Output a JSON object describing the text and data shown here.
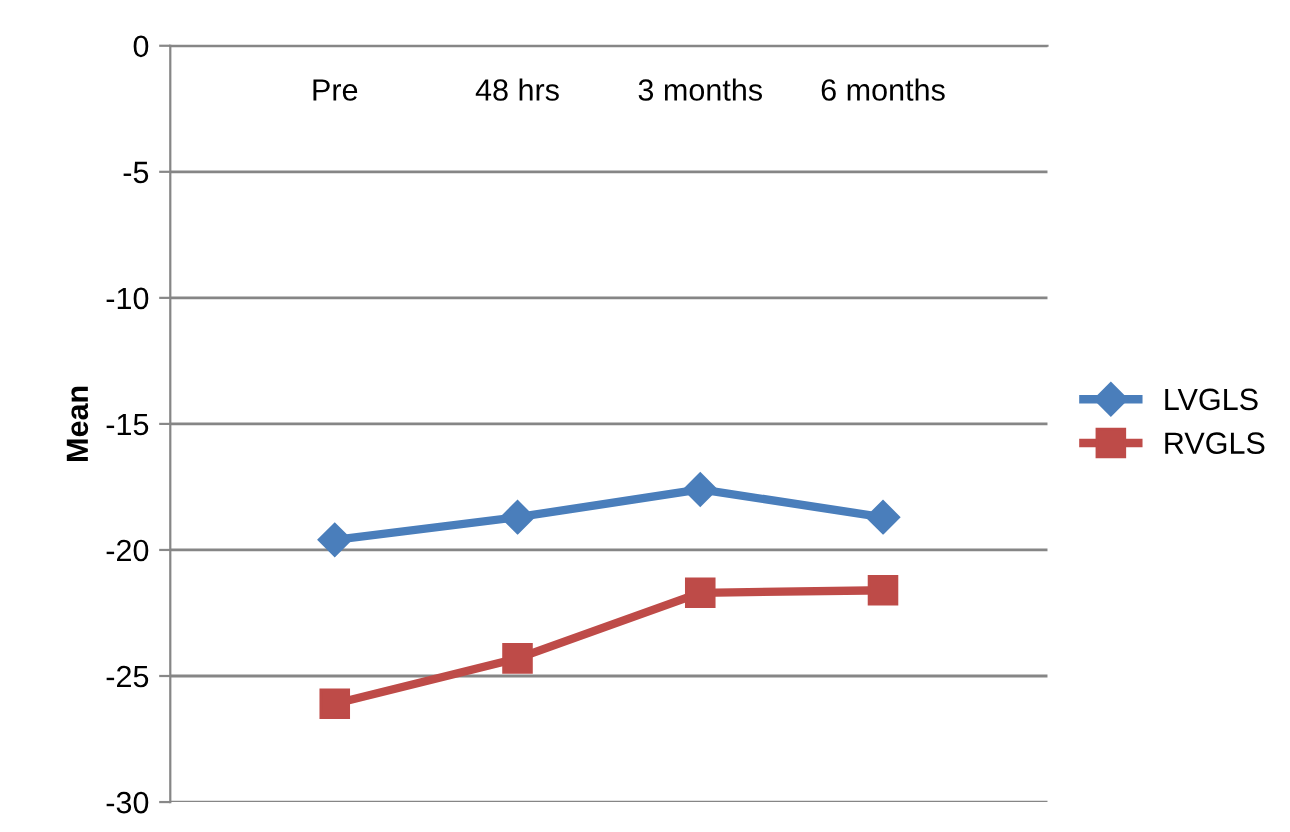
{
  "chart_data": {
    "type": "line",
    "ylabel": "Mean",
    "categories": [
      "Pre",
      "48 hrs",
      "3 months",
      "6 months"
    ],
    "series": [
      {
        "name": "LVGLS",
        "color": "#4a7ebb",
        "values": [
          -19.6,
          -18.7,
          -17.6,
          -18.7
        ]
      },
      {
        "name": "RVGLS",
        "color": "#be4b48",
        "values": [
          -26.1,
          -24.3,
          -21.7,
          -21.6
        ],
        "marker": "square"
      }
    ],
    "marker": "diamond",
    "ylim": [
      -30,
      0
    ],
    "yticks": [
      -30,
      -25,
      -20,
      -15,
      -10,
      -5,
      0
    ],
    "grid": "y",
    "legend": "right"
  }
}
